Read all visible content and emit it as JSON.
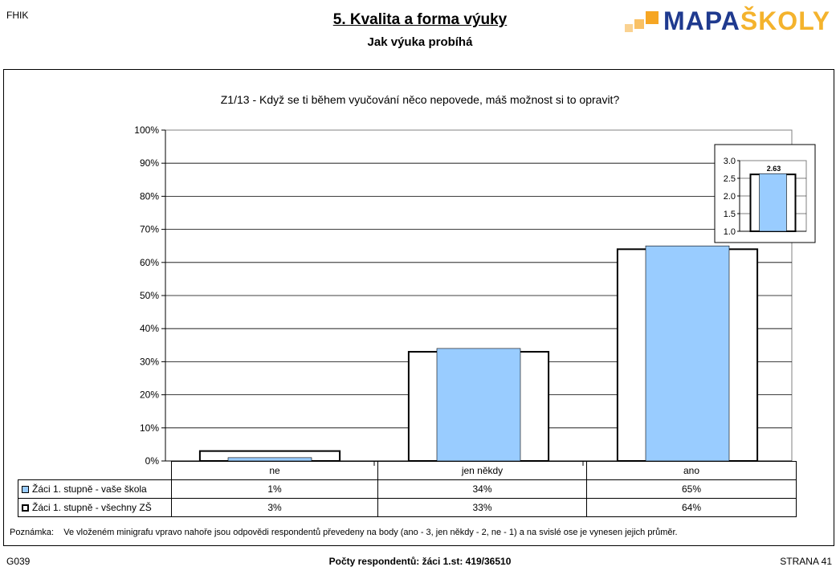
{
  "header": {
    "code": "FHIK",
    "title": "5. Kvalita a forma výuky",
    "subtitle": "Jak výuka probíhá",
    "logo_main": "MAPA",
    "logo_accent": "ŠKOLY"
  },
  "colors": {
    "school_fill": "#99ccff",
    "all_fill": "#ffffff",
    "logo_blue": "#1f3a8f",
    "logo_orange": "#f6a623"
  },
  "chart_data": {
    "type": "bar",
    "title": "Z1/13 - Když se ti během vyučování něco nepovede, máš možnost si to opravit?",
    "categories": [
      "ne",
      "jen někdy",
      "ano"
    ],
    "y_ticks": [
      "0%",
      "10%",
      "20%",
      "30%",
      "40%",
      "50%",
      "60%",
      "70%",
      "80%",
      "90%",
      "100%"
    ],
    "ylim": [
      0,
      100
    ],
    "series": [
      {
        "name": "Žáci 1. stupně - vaše škola",
        "values": [
          1,
          34,
          65
        ],
        "labels": [
          "1%",
          "34%",
          "65%"
        ]
      },
      {
        "name": "Žáci 1. stupně - všechny ZŠ",
        "values": [
          3,
          33,
          64
        ],
        "labels": [
          "3%",
          "33%",
          "64%"
        ]
      }
    ],
    "inset": {
      "type": "bar",
      "ylim": [
        1,
        3
      ],
      "y_ticks": [
        "1.0",
        "1.5",
        "2.0",
        "2.5",
        "3.0"
      ],
      "school_value": 2.63,
      "all_value": 2.61,
      "value_label": "2.63"
    },
    "grid": true,
    "legend": "table-below"
  },
  "note": {
    "label": "Poznámka:",
    "text": "Ve vloženém minigrafu vpravo nahoře jsou odpovědi respondentů převedeny na body (ano - 3, jen někdy - 2, ne - 1) a na svislé ose je vynesen jejich průměr."
  },
  "footer": {
    "left": "G039",
    "center": "Počty respondentů:   žáci 1.st: 419/36510",
    "right": "STRANA 41"
  }
}
